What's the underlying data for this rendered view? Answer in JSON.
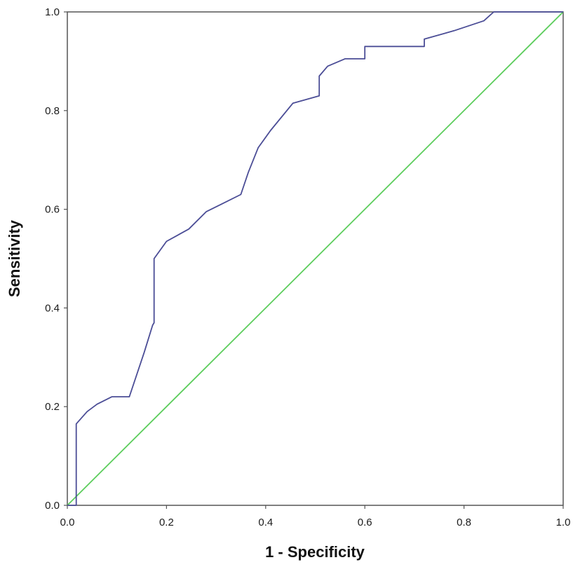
{
  "chart_data": {
    "type": "line",
    "title": "",
    "xlabel": "1 - Specificity",
    "ylabel": "Sensitivity",
    "xlim": [
      0.0,
      1.0
    ],
    "ylim": [
      0.0,
      1.0
    ],
    "grid": false,
    "xticks": [
      "0.0",
      "0.2",
      "0.4",
      "0.6",
      "0.8",
      "1.0"
    ],
    "yticks": [
      "0.0",
      "0.2",
      "0.4",
      "0.6",
      "0.8",
      "1.0"
    ],
    "colors": {
      "roc": "#4b4d96",
      "reference": "#5ccd5c",
      "frame": "#555555"
    },
    "series": [
      {
        "role": "roc",
        "x": [
          0.0,
          0.018,
          0.018,
          0.04,
          0.06,
          0.09,
          0.125,
          0.155,
          0.172,
          0.175,
          0.175,
          0.2,
          0.245,
          0.28,
          0.31,
          0.35,
          0.365,
          0.385,
          0.41,
          0.455,
          0.508,
          0.508,
          0.525,
          0.56,
          0.6,
          0.6,
          0.72,
          0.72,
          0.78,
          0.84,
          0.86,
          1.0
        ],
        "y": [
          0.0,
          0.0,
          0.165,
          0.19,
          0.205,
          0.22,
          0.22,
          0.31,
          0.365,
          0.37,
          0.5,
          0.535,
          0.56,
          0.595,
          0.61,
          0.63,
          0.675,
          0.725,
          0.76,
          0.815,
          0.83,
          0.87,
          0.89,
          0.905,
          0.905,
          0.93,
          0.93,
          0.945,
          0.962,
          0.982,
          1.0,
          1.0
        ]
      },
      {
        "role": "reference",
        "x": [
          0.0,
          1.0
        ],
        "y": [
          0.0,
          1.0
        ]
      }
    ]
  }
}
